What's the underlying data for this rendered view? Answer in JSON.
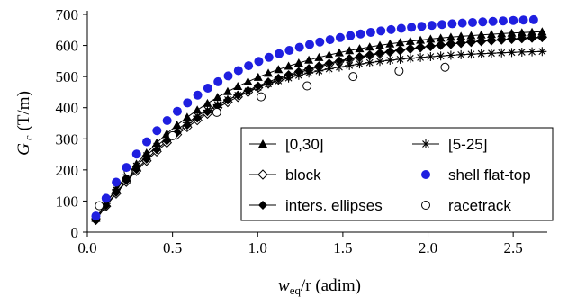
{
  "chart_data": {
    "type": "scatter",
    "xlabel": {
      "main": "w",
      "sub": "eq",
      "rest": "/r  (adim)"
    },
    "ylabel": {
      "main": "G",
      "sub": " c",
      "rest": " (T/m)"
    },
    "xlim": [
      0,
      2.7
    ],
    "ylim": [
      0,
      700
    ],
    "xticks": [
      {
        "value": 0,
        "label": "0.0"
      },
      {
        "value": 0.5,
        "label": "0.5"
      },
      {
        "value": 1.0,
        "label": "1.0"
      },
      {
        "value": 1.5,
        "label": "1.5"
      },
      {
        "value": 2.0,
        "label": "2.0"
      },
      {
        "value": 2.5,
        "label": "2.5"
      }
    ],
    "yticks": [
      {
        "value": 0,
        "label": "0"
      },
      {
        "value": 100,
        "label": "100"
      },
      {
        "value": 200,
        "label": "200"
      },
      {
        "value": 300,
        "label": "300"
      },
      {
        "value": 400,
        "label": "400"
      },
      {
        "value": 500,
        "label": "500"
      },
      {
        "value": 600,
        "label": "600"
      },
      {
        "value": 700,
        "label": "700"
      }
    ],
    "grid": false,
    "legend_position": "bottom-right",
    "series": [
      {
        "name": "[0,30]",
        "marker": "triangle",
        "color": "#000000",
        "connected": true,
        "x_start": 0.05,
        "x_end": 2.67,
        "n": 45,
        "a": 660,
        "k": 1.4
      },
      {
        "name": "[5-25]",
        "marker": "asterisk",
        "color": "#000000",
        "connected": true,
        "x_start": 0.05,
        "x_end": 2.67,
        "n": 45,
        "a": 590,
        "k": 1.55
      },
      {
        "name": "block",
        "marker": "diamond-open",
        "color": "#000000",
        "connected": true,
        "x_start": 0.05,
        "x_end": 2.67,
        "n": 45,
        "a": 650,
        "k": 1.25
      },
      {
        "name": "shell flat-top",
        "marker": "circle-filled",
        "color": "#1f1fe0",
        "connected": false,
        "x_start": 0.05,
        "x_end": 2.62,
        "n": 44,
        "a": 695,
        "k": 1.55
      },
      {
        "name": "inters. ellipses",
        "marker": "diamond-filled",
        "color": "#000000",
        "connected": true,
        "x_start": 0.05,
        "x_end": 2.67,
        "n": 45,
        "a": 645,
        "k": 1.3
      },
      {
        "name": "racetrack",
        "marker": "circle-open",
        "color": "#000000",
        "connected": false,
        "x": [
          0.07,
          0.24,
          0.5,
          0.76,
          1.02,
          1.29,
          1.56,
          1.83,
          2.1
        ],
        "y": [
          85,
          195,
          310,
          385,
          435,
          470,
          500,
          518,
          530
        ]
      }
    ]
  }
}
